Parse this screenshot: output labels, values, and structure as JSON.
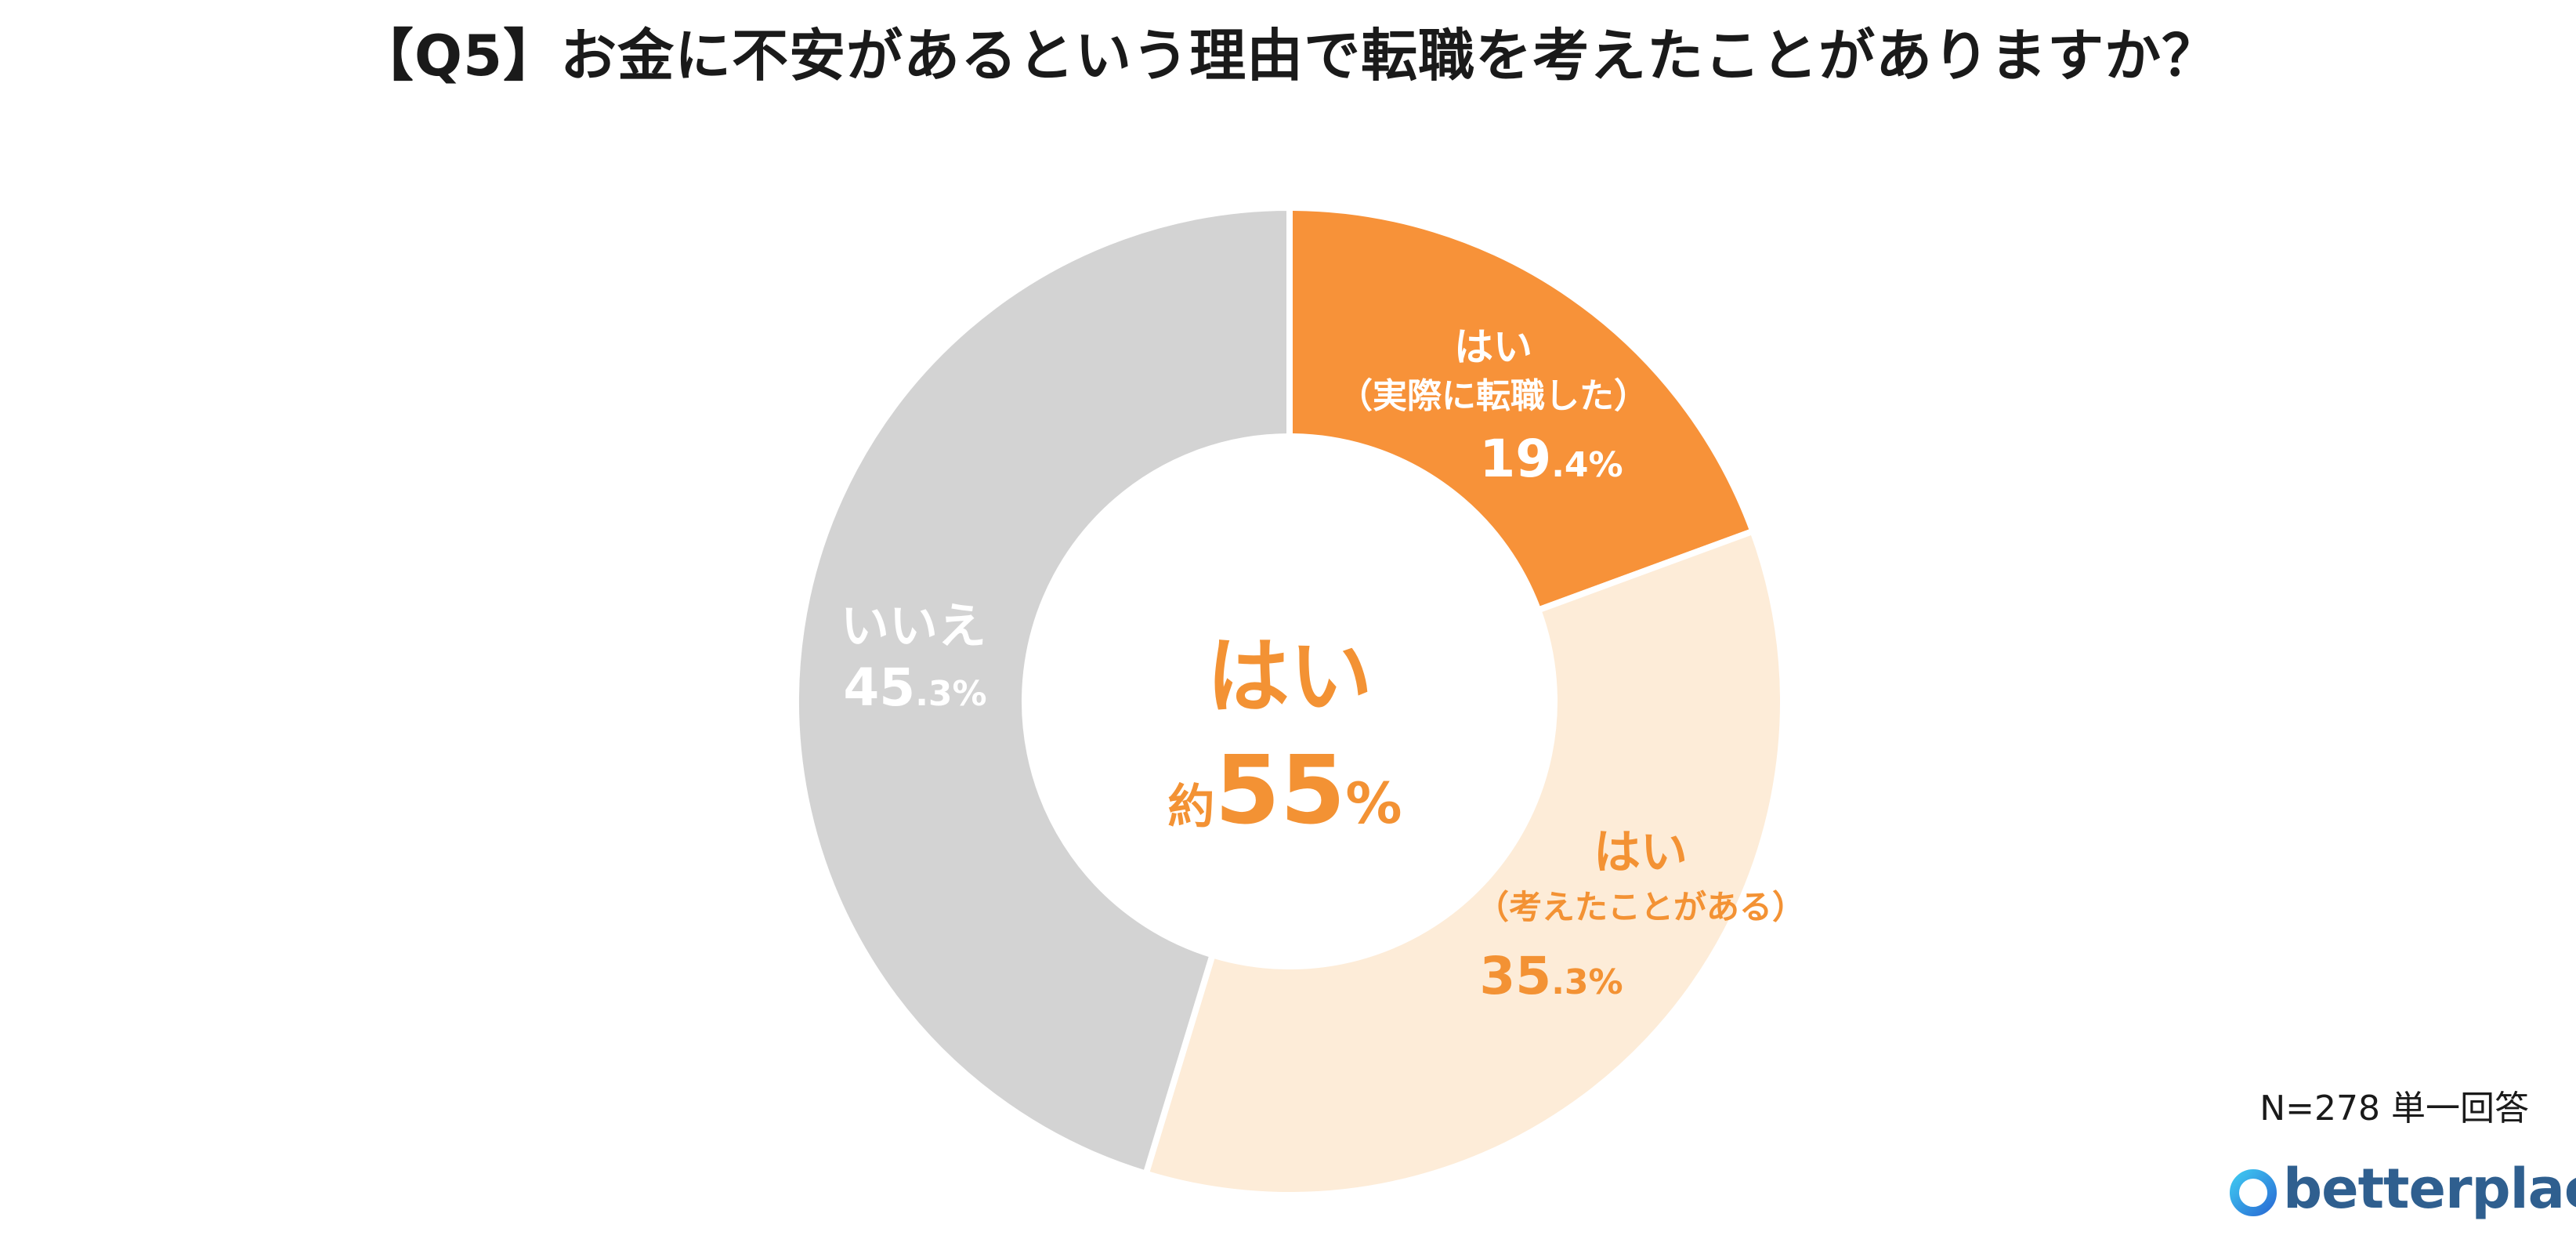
{
  "title": "【Q5】お金に不安があるという理由で転職を考えたことがありますか？",
  "footnote": "N=278 単一回答",
  "logo_text": "betterplace",
  "colors": {
    "slice_transferred": "#F79239",
    "slice_considered": "#FDECD8",
    "slice_no": "#D3D3D3",
    "accent_text": "#F39234",
    "white_text": "#FFFFFF"
  },
  "chart_data": {
    "type": "pie",
    "donut": true,
    "slices": [
      {
        "label_line1": "はい",
        "label_line2": "（実際に転職した）",
        "value": 19.4,
        "int_part": "19",
        "dec_part": ".4",
        "unit": "%"
      },
      {
        "label_line1": "はい",
        "label_line2": "（考えたことがある）",
        "value": 35.3,
        "int_part": "35",
        "dec_part": ".3",
        "unit": "%"
      },
      {
        "label_line1": "いいえ",
        "label_line2": "",
        "value": 45.3,
        "int_part": "45",
        "dec_part": ".3",
        "unit": "%"
      }
    ],
    "center": {
      "line1": "はい",
      "prefix": "約",
      "number": "55",
      "unit": "%"
    }
  }
}
